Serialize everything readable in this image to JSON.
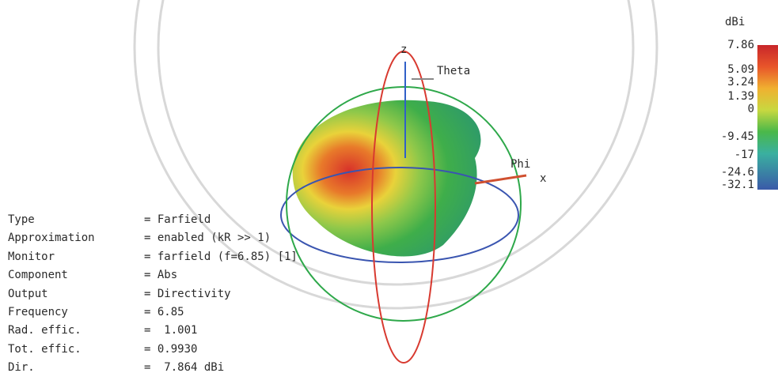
{
  "axes": {
    "z": "z",
    "theta": "Theta",
    "phi": "Phi",
    "x": "x"
  },
  "colorbar": {
    "unit": "dBi",
    "ticks": [
      "7.86",
      "5.09",
      "3.24",
      "1.39",
      "0",
      "-9.45",
      "-17",
      "-24.6",
      "-32.1"
    ]
  },
  "info": {
    "rows": [
      [
        "Type",
        "= Farfield"
      ],
      [
        "Approximation",
        "= enabled (kR >> 1)"
      ],
      [
        "Monitor",
        "= farfield (f=6.85) [1]"
      ],
      [
        "Component",
        "= Abs"
      ],
      [
        "Output",
        "= Directivity"
      ],
      [
        "Frequency",
        "= 6.85"
      ],
      [
        "Rad. effic.",
        "=  1.001"
      ],
      [
        "Tot. effic.",
        "= 0.9930"
      ],
      [
        "Dir.",
        "=  7.864 dBi"
      ]
    ]
  }
}
